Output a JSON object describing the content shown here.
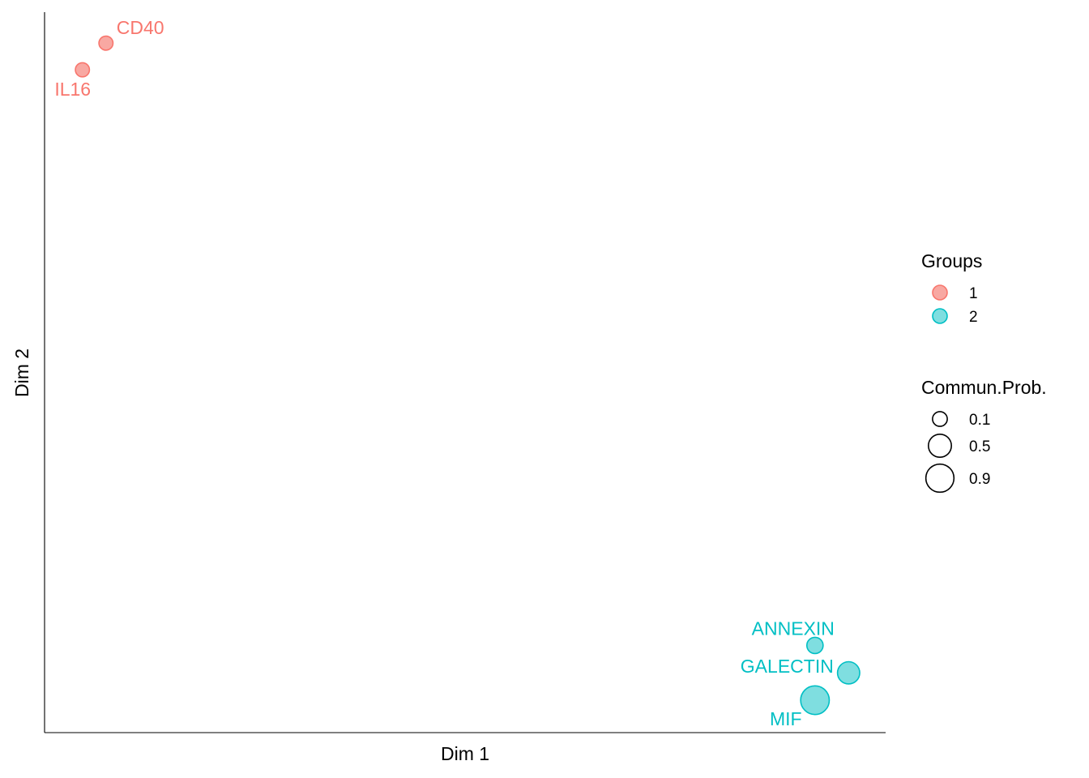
{
  "chart_data": {
    "type": "scatter",
    "xlabel": "Dim 1",
    "ylabel": "Dim 2",
    "xlim": [
      0,
      1
    ],
    "ylim": [
      0,
      1
    ],
    "grid": false,
    "legend_position": "right",
    "points": [
      {
        "label": "CD40",
        "x": 0.073,
        "y": 0.957,
        "group": "1",
        "prob": 0.08
      },
      {
        "label": "IL16",
        "x": 0.045,
        "y": 0.92,
        "group": "1",
        "prob": 0.08
      },
      {
        "label": "ANNEXIN",
        "x": 0.916,
        "y": 0.121,
        "group": "2",
        "prob": 0.15
      },
      {
        "label": "GALECTIN",
        "x": 0.956,
        "y": 0.083,
        "group": "2",
        "prob": 0.45
      },
      {
        "label": "MIF",
        "x": 0.916,
        "y": 0.045,
        "group": "2",
        "prob": 0.95
      }
    ],
    "legends": {
      "groups": {
        "title": "Groups",
        "items": [
          {
            "label": "1",
            "color": "#F8766D",
            "fill": "#F8A8A2"
          },
          {
            "label": "2",
            "color": "#00BFC4",
            "fill": "#7FDEE0"
          }
        ]
      },
      "size": {
        "title": "Commun.Prob.",
        "items": [
          {
            "label": "0.1",
            "value": 0.1
          },
          {
            "label": "0.5",
            "value": 0.5
          },
          {
            "label": "0.9",
            "value": 0.9
          }
        ]
      }
    }
  }
}
